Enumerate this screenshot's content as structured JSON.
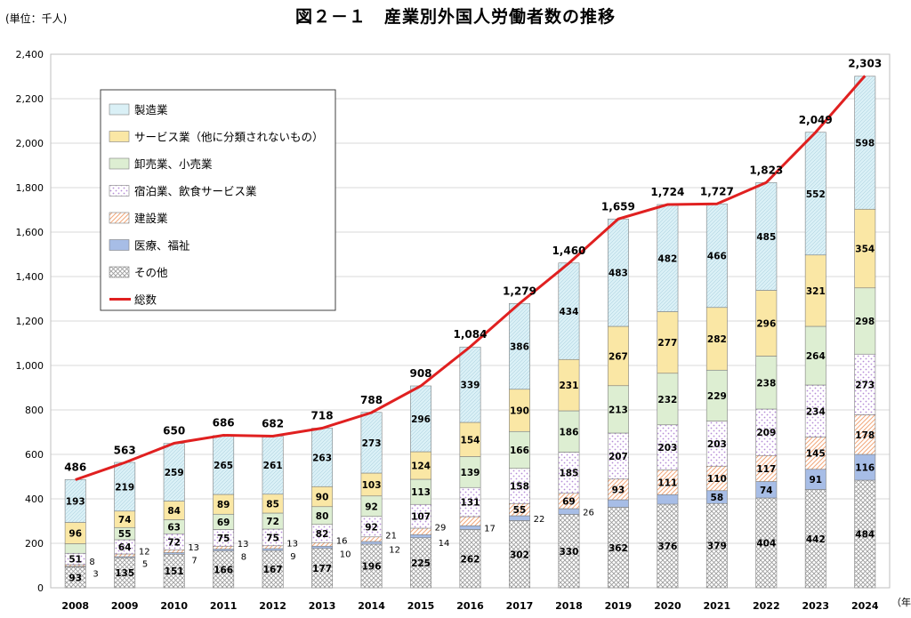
{
  "figure": {
    "title": "図２－１　産業別外国人労働者数の推移",
    "unit_label": "(単位：千人)",
    "x_unit_label": "（年）"
  },
  "chart_data": {
    "type": "bar",
    "stacked": true,
    "categories": [
      "2008",
      "2009",
      "2010",
      "2011",
      "2012",
      "2013",
      "2014",
      "2015",
      "2016",
      "2017",
      "2018",
      "2019",
      "2020",
      "2021",
      "2022",
      "2023",
      "2024"
    ],
    "series": [
      {
        "name": "その他",
        "pattern": "crosshatch",
        "color": "#9a9a9a",
        "values": [
          93,
          135,
          151,
          166,
          167,
          177,
          196,
          225,
          262,
          302,
          330,
          362,
          376,
          379,
          404,
          442,
          484
        ]
      },
      {
        "name": "医療、福祉",
        "pattern": "solid",
        "color": "#a7bde6",
        "values": [
          3,
          5,
          7,
          8,
          9,
          10,
          12,
          14,
          17,
          22,
          26,
          34,
          43,
          58,
          74,
          91,
          116
        ]
      },
      {
        "name": "建設業",
        "pattern": "diagonal",
        "color": "#f2a77a",
        "values": [
          8,
          12,
          13,
          13,
          13,
          16,
          21,
          29,
          41,
          55,
          69,
          93,
          111,
          110,
          117,
          145,
          178
        ]
      },
      {
        "name": "宿泊業、飲食サービス業",
        "pattern": "dots",
        "color": "#b58cd6",
        "values": [
          51,
          64,
          72,
          75,
          75,
          82,
          92,
          107,
          131,
          158,
          185,
          207,
          203,
          203,
          209,
          234,
          273
        ]
      },
      {
        "name": "卸売業、小売業",
        "pattern": "solid",
        "color": "#ddeed2",
        "values": [
          43,
          55,
          63,
          69,
          72,
          80,
          92,
          113,
          139,
          166,
          186,
          213,
          232,
          229,
          238,
          264,
          298
        ]
      },
      {
        "name": "サービス業（他に分類されないもの）",
        "pattern": "solid",
        "color": "#fae7a5",
        "values": [
          96,
          74,
          84,
          89,
          85,
          90,
          103,
          124,
          154,
          190,
          231,
          267,
          277,
          282,
          296,
          321,
          354
        ]
      },
      {
        "name": "製造業",
        "pattern": "solid",
        "color": "#daf0f6",
        "values": [
          193,
          219,
          259,
          265,
          261,
          263,
          273,
          296,
          339,
          386,
          434,
          483,
          482,
          466,
          485,
          552,
          598
        ]
      }
    ],
    "total": {
      "name": "総数",
      "color": "#e02020",
      "values": [
        486,
        563,
        650,
        686,
        682,
        718,
        788,
        908,
        1084,
        1279,
        1460,
        1659,
        1724,
        1727,
        1823,
        2049,
        2303
      ],
      "labels": [
        "486",
        "563",
        "650",
        "686",
        "682",
        "718",
        "788",
        "908",
        "1,084",
        "1,279",
        "1,460",
        "1,659",
        "1,724",
        "1,727",
        "1,823",
        "2,049",
        "2,303"
      ]
    },
    "small_labels_outside": [
      {
        "year_index": 0,
        "labels": [
          "8",
          "3"
        ]
      },
      {
        "year_index": 1,
        "labels": [
          "12",
          "5"
        ]
      },
      {
        "year_index": 2,
        "labels": [
          "13",
          "7"
        ]
      },
      {
        "year_index": 3,
        "labels": [
          "13",
          "8"
        ]
      },
      {
        "year_index": 4,
        "labels": [
          "13",
          "9"
        ]
      },
      {
        "year_index": 5,
        "labels": [
          "16",
          "10"
        ]
      },
      {
        "year_index": 6,
        "labels": [
          "21",
          "12"
        ]
      },
      {
        "year_index": 7,
        "labels": [
          "29",
          "14"
        ]
      },
      {
        "year_index": 8,
        "labels": [
          "17"
        ]
      },
      {
        "year_index": 9,
        "labels": [
          "22"
        ]
      },
      {
        "year_index": 10,
        "labels": [
          "26"
        ]
      }
    ],
    "legend_order": [
      "製造業",
      "サービス業（他に分類されないもの）",
      "卸売業、小売業",
      "宿泊業、飲食サービス業",
      "建設業",
      "医療、福祉",
      "その他",
      "総数"
    ],
    "ylim": [
      0,
      2400
    ],
    "yticks": [
      "0",
      "200",
      "400",
      "600",
      "800",
      "1,000",
      "1,200",
      "1,400",
      "1,600",
      "1,800",
      "2,000",
      "2,200",
      "2,400"
    ],
    "grid": "horizontal",
    "legend_position": "top-left"
  }
}
